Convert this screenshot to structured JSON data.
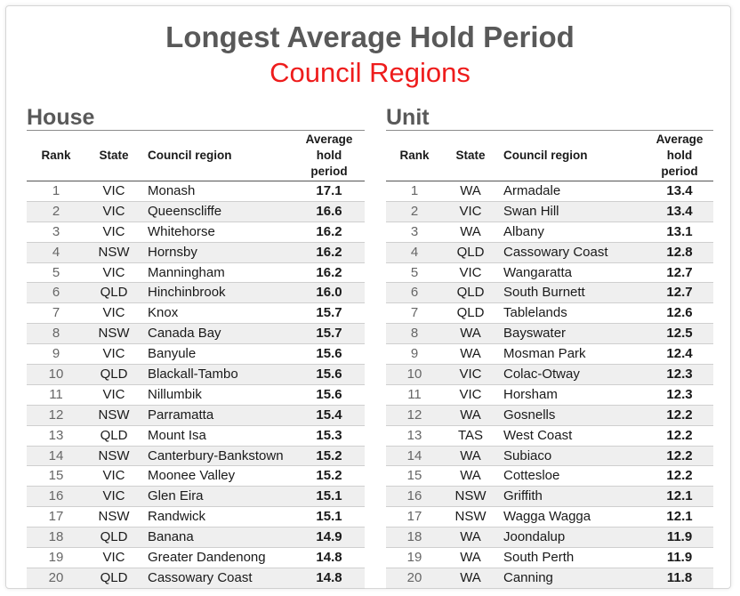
{
  "title": "Longest Average Hold Period",
  "subtitle": "Council Regions",
  "columns": {
    "rank": "Rank",
    "state": "State",
    "region": "Council region",
    "period_line1": "Average",
    "period_line2": "hold",
    "period_line3": "period"
  },
  "house": {
    "heading": "House",
    "rows": [
      {
        "rank": "1",
        "state": "VIC",
        "region": "Monash",
        "period": "17.1"
      },
      {
        "rank": "2",
        "state": "VIC",
        "region": "Queenscliffe",
        "period": "16.6"
      },
      {
        "rank": "3",
        "state": "VIC",
        "region": "Whitehorse",
        "period": "16.2"
      },
      {
        "rank": "4",
        "state": "NSW",
        "region": "Hornsby",
        "period": "16.2"
      },
      {
        "rank": "5",
        "state": "VIC",
        "region": "Manningham",
        "period": "16.2"
      },
      {
        "rank": "6",
        "state": "QLD",
        "region": "Hinchinbrook",
        "period": "16.0"
      },
      {
        "rank": "7",
        "state": "VIC",
        "region": "Knox",
        "period": "15.7"
      },
      {
        "rank": "8",
        "state": "NSW",
        "region": "Canada Bay",
        "period": "15.7"
      },
      {
        "rank": "9",
        "state": "VIC",
        "region": "Banyule",
        "period": "15.6"
      },
      {
        "rank": "10",
        "state": "QLD",
        "region": "Blackall-Tambo",
        "period": "15.6"
      },
      {
        "rank": "11",
        "state": "VIC",
        "region": "Nillumbik",
        "period": "15.6"
      },
      {
        "rank": "12",
        "state": "NSW",
        "region": "Parramatta",
        "period": "15.4"
      },
      {
        "rank": "13",
        "state": "QLD",
        "region": "Mount Isa",
        "period": "15.3"
      },
      {
        "rank": "14",
        "state": "NSW",
        "region": "Canterbury-Bankstown",
        "period": "15.2"
      },
      {
        "rank": "15",
        "state": "VIC",
        "region": "Moonee Valley",
        "period": "15.2"
      },
      {
        "rank": "16",
        "state": "VIC",
        "region": "Glen Eira",
        "period": "15.1"
      },
      {
        "rank": "17",
        "state": "NSW",
        "region": "Randwick",
        "period": "15.1"
      },
      {
        "rank": "18",
        "state": "QLD",
        "region": "Banana",
        "period": "14.9"
      },
      {
        "rank": "19",
        "state": "VIC",
        "region": "Greater Dandenong",
        "period": "14.8"
      },
      {
        "rank": "20",
        "state": "QLD",
        "region": "Cassowary Coast",
        "period": "14.8"
      }
    ]
  },
  "unit": {
    "heading": "Unit",
    "rows": [
      {
        "rank": "1",
        "state": "WA",
        "region": "Armadale",
        "period": "13.4"
      },
      {
        "rank": "2",
        "state": "VIC",
        "region": "Swan Hill",
        "period": "13.4"
      },
      {
        "rank": "3",
        "state": "WA",
        "region": "Albany",
        "period": "13.1"
      },
      {
        "rank": "4",
        "state": "QLD",
        "region": "Cassowary Coast",
        "period": "12.8"
      },
      {
        "rank": "5",
        "state": "VIC",
        "region": "Wangaratta",
        "period": "12.7"
      },
      {
        "rank": "6",
        "state": "QLD",
        "region": "South Burnett",
        "period": "12.7"
      },
      {
        "rank": "7",
        "state": "QLD",
        "region": "Tablelands",
        "period": "12.6"
      },
      {
        "rank": "8",
        "state": "WA",
        "region": "Bayswater",
        "period": "12.5"
      },
      {
        "rank": "9",
        "state": "WA",
        "region": "Mosman Park",
        "period": "12.4"
      },
      {
        "rank": "10",
        "state": "VIC",
        "region": "Colac-Otway",
        "period": "12.3"
      },
      {
        "rank": "11",
        "state": "VIC",
        "region": "Horsham",
        "period": "12.3"
      },
      {
        "rank": "12",
        "state": "WA",
        "region": "Gosnells",
        "period": "12.2"
      },
      {
        "rank": "13",
        "state": "TAS",
        "region": "West Coast",
        "period": "12.2"
      },
      {
        "rank": "14",
        "state": "WA",
        "region": "Subiaco",
        "period": "12.2"
      },
      {
        "rank": "15",
        "state": "WA",
        "region": "Cottesloe",
        "period": "12.2"
      },
      {
        "rank": "16",
        "state": "NSW",
        "region": "Griffith",
        "period": "12.1"
      },
      {
        "rank": "17",
        "state": "NSW",
        "region": "Wagga Wagga",
        "period": "12.1"
      },
      {
        "rank": "18",
        "state": "WA",
        "region": "Joondalup",
        "period": "11.9"
      },
      {
        "rank": "19",
        "state": "WA",
        "region": "South Perth",
        "period": "11.9"
      },
      {
        "rank": "20",
        "state": "WA",
        "region": "Canning",
        "period": "11.8"
      }
    ]
  },
  "colors": {
    "title": "#595959",
    "subtitle": "#ee1c1c",
    "row_stripe": "#efefef"
  }
}
